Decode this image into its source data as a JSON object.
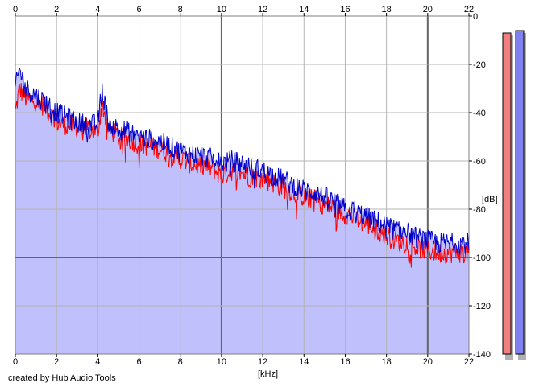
{
  "chart_data": {
    "type": "area",
    "xlabel": "[kHz]",
    "ylabel": "[dB]",
    "xlim": [
      0,
      22
    ],
    "ylim": [
      -140,
      0
    ],
    "x_ticks": [
      "0",
      "2",
      "4",
      "6",
      "8",
      "10",
      "12",
      "14",
      "16",
      "18",
      "20",
      "22"
    ],
    "y_ticks": [
      "0",
      "-20",
      "-40",
      "-60",
      "-80",
      "-100",
      "-120",
      "-140"
    ],
    "grid": true,
    "colors": {
      "fill": "#c0c0fc",
      "channel_red": "#ff0000",
      "channel_blue": "#0000cc",
      "level_meter_red": "#f08080",
      "level_meter_blue": "#8080f0",
      "grid_minor": "#b4b4b4",
      "grid_major": "#646464"
    },
    "series": [
      {
        "x": [
          0,
          0.2,
          0.5,
          1,
          1.5,
          2,
          2.5,
          3,
          3.5,
          4,
          4.2,
          4.5,
          5,
          5.5,
          6,
          6.5,
          7,
          7.5,
          8,
          8.5,
          9,
          9.5,
          10,
          10.5,
          11,
          11.5,
          12,
          12.5,
          13,
          13.5,
          14,
          14.5,
          15,
          15.5,
          16,
          16.5,
          17,
          17.5,
          18,
          18.5,
          19,
          19.5,
          20,
          20.5,
          21,
          21.5,
          22
        ],
        "values": [
          -40,
          -30,
          -34,
          -35,
          -38,
          -44,
          -45,
          -46,
          -47,
          -48,
          -36,
          -46,
          -50,
          -51,
          -53,
          -54,
          -55,
          -57,
          -59,
          -61,
          -62,
          -63,
          -66,
          -64,
          -65,
          -67,
          -67,
          -69,
          -71,
          -73,
          -75,
          -76,
          -78,
          -80,
          -82,
          -84,
          -86,
          -88,
          -91,
          -93,
          -94,
          -96,
          -97,
          -98,
          -98,
          -98,
          -98
        ]
      },
      {
        "x": [
          0,
          0.2,
          0.5,
          1,
          1.5,
          2,
          2.5,
          3,
          3.5,
          4,
          4.2,
          4.5,
          5,
          5.5,
          6,
          6.5,
          7,
          7.5,
          8,
          8.5,
          9,
          9.5,
          10,
          10.5,
          11,
          11.5,
          12,
          12.5,
          13,
          13.5,
          14,
          14.5,
          15,
          15.5,
          16,
          16.5,
          17,
          17.5,
          18,
          18.5,
          19,
          19.5,
          20,
          20.5,
          21,
          21.5,
          22
        ],
        "values": [
          -30,
          -22,
          -30,
          -33,
          -36,
          -40,
          -42,
          -44,
          -45,
          -45,
          -30,
          -44,
          -47,
          -48,
          -50,
          -51,
          -52,
          -54,
          -56,
          -57,
          -58,
          -59,
          -61,
          -60,
          -61,
          -63,
          -64,
          -66,
          -68,
          -70,
          -72,
          -73,
          -75,
          -77,
          -80,
          -81,
          -83,
          -85,
          -87,
          -89,
          -90,
          -92,
          -93,
          -94,
          -94,
          -94,
          -94
        ]
      }
    ],
    "level_meters": [
      {
        "top": -7,
        "bottom": -140
      },
      {
        "top": -6,
        "bottom": -140
      }
    ]
  },
  "footer": {
    "credit": "created by Hub Audio Tools"
  }
}
